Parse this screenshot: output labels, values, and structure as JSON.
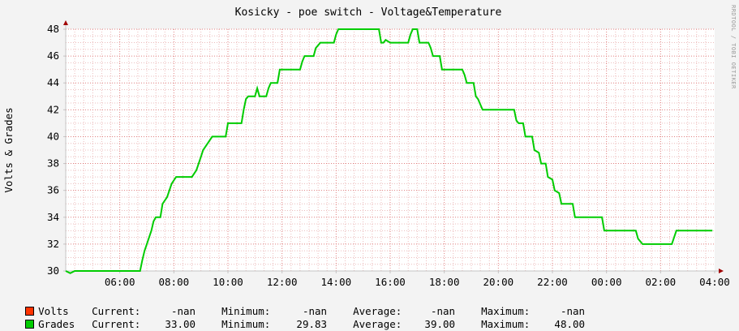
{
  "chart_data": {
    "type": "line",
    "title": "Kosicky - poe switch - Voltage&Temperature",
    "ylabel": "Volts & Grades",
    "watermark": "RRDTOOL / TOBI OETIKER",
    "ylim": [
      30,
      48
    ],
    "yticks": [
      "30",
      "32",
      "34",
      "36",
      "38",
      "40",
      "42",
      "44",
      "46",
      "48"
    ],
    "xlim": [
      "04:00",
      "04:00 next day"
    ],
    "xticks": [
      "06:00",
      "08:00",
      "10:00",
      "12:00",
      "14:00",
      "16:00",
      "18:00",
      "20:00",
      "22:00",
      "00:00",
      "02:00",
      "04:00"
    ],
    "grid": true,
    "series": [
      {
        "name": "Grades",
        "color": "#00cc00",
        "points": [
          [
            "04:00",
            30
          ],
          [
            "04:10",
            29.83
          ],
          [
            "04:20",
            30
          ],
          [
            "06:45",
            30
          ],
          [
            "06:50",
            30.8
          ],
          [
            "06:55",
            31.5
          ],
          [
            "07:00",
            32
          ],
          [
            "07:05",
            32.5
          ],
          [
            "07:10",
            33
          ],
          [
            "07:15",
            33.7
          ],
          [
            "07:20",
            34
          ],
          [
            "07:30",
            34
          ],
          [
            "07:35",
            35
          ],
          [
            "07:45",
            35.5
          ],
          [
            "07:50",
            36
          ],
          [
            "07:55",
            36.5
          ],
          [
            "08:05",
            37
          ],
          [
            "08:40",
            37
          ],
          [
            "08:50",
            37.5
          ],
          [
            "08:55",
            38
          ],
          [
            "09:00",
            38.5
          ],
          [
            "09:05",
            39
          ],
          [
            "09:15",
            39.5
          ],
          [
            "09:25",
            40
          ],
          [
            "09:55",
            40
          ],
          [
            "10:00",
            41
          ],
          [
            "10:30",
            41
          ],
          [
            "10:35",
            42
          ],
          [
            "10:40",
            42.8
          ],
          [
            "10:45",
            43
          ],
          [
            "11:00",
            43
          ],
          [
            "11:05",
            43.6
          ],
          [
            "11:10",
            43
          ],
          [
            "11:25",
            43
          ],
          [
            "11:30",
            43.6
          ],
          [
            "11:35",
            44
          ],
          [
            "11:50",
            44
          ],
          [
            "11:55",
            45
          ],
          [
            "12:40",
            45
          ],
          [
            "12:45",
            45.6
          ],
          [
            "12:50",
            46
          ],
          [
            "13:10",
            46
          ],
          [
            "13:15",
            46.6
          ],
          [
            "13:25",
            47
          ],
          [
            "13:55",
            47
          ],
          [
            "14:00",
            47.6
          ],
          [
            "14:05",
            48
          ],
          [
            "15:35",
            48
          ],
          [
            "15:40",
            47
          ],
          [
            "15:45",
            47
          ],
          [
            "15:50",
            47.2
          ],
          [
            "16:00",
            47
          ],
          [
            "16:40",
            47
          ],
          [
            "16:45",
            47.6
          ],
          [
            "16:50",
            48
          ],
          [
            "17:00",
            48
          ],
          [
            "17:05",
            47
          ],
          [
            "17:25",
            47
          ],
          [
            "17:30",
            46.6
          ],
          [
            "17:35",
            46
          ],
          [
            "17:50",
            46
          ],
          [
            "17:55",
            45
          ],
          [
            "18:40",
            45
          ],
          [
            "18:45",
            44.6
          ],
          [
            "18:50",
            44
          ],
          [
            "19:05",
            44
          ],
          [
            "19:10",
            43
          ],
          [
            "19:15",
            42.8
          ],
          [
            "19:25",
            42
          ],
          [
            "20:35",
            42
          ],
          [
            "20:40",
            41.2
          ],
          [
            "20:45",
            41
          ],
          [
            "20:55",
            41
          ],
          [
            "21:00",
            40
          ],
          [
            "21:15",
            40
          ],
          [
            "21:20",
            39
          ],
          [
            "21:30",
            38.8
          ],
          [
            "21:35",
            38
          ],
          [
            "21:45",
            38
          ],
          [
            "21:50",
            37
          ],
          [
            "22:00",
            36.8
          ],
          [
            "22:05",
            36
          ],
          [
            "22:15",
            35.8
          ],
          [
            "22:20",
            35
          ],
          [
            "22:45",
            35
          ],
          [
            "22:50",
            34
          ],
          [
            "23:50",
            34
          ],
          [
            "23:55",
            33
          ],
          [
            "01:05",
            33
          ],
          [
            "01:10",
            32.4
          ],
          [
            "01:20",
            32
          ],
          [
            "02:25",
            32
          ],
          [
            "02:30",
            32.5
          ],
          [
            "02:35",
            33
          ],
          [
            "03:55",
            33
          ]
        ]
      }
    ]
  },
  "legend": {
    "rows": [
      {
        "name": "Volts",
        "color": "#ff3300",
        "current_label": "Current:",
        "current": "-nan",
        "minimum_label": "Minimum:",
        "minimum": "-nan",
        "average_label": "Average:",
        "average": "-nan",
        "maximum_label": "Maximum:",
        "maximum": "-nan"
      },
      {
        "name": "Grades",
        "color": "#00cc00",
        "current_label": "Current:",
        "current": "33.00",
        "minimum_label": "Minimum:",
        "minimum": "29.83",
        "average_label": "Average:",
        "average": "39.00",
        "maximum_label": "Maximum:",
        "maximum": "48.00"
      }
    ]
  }
}
